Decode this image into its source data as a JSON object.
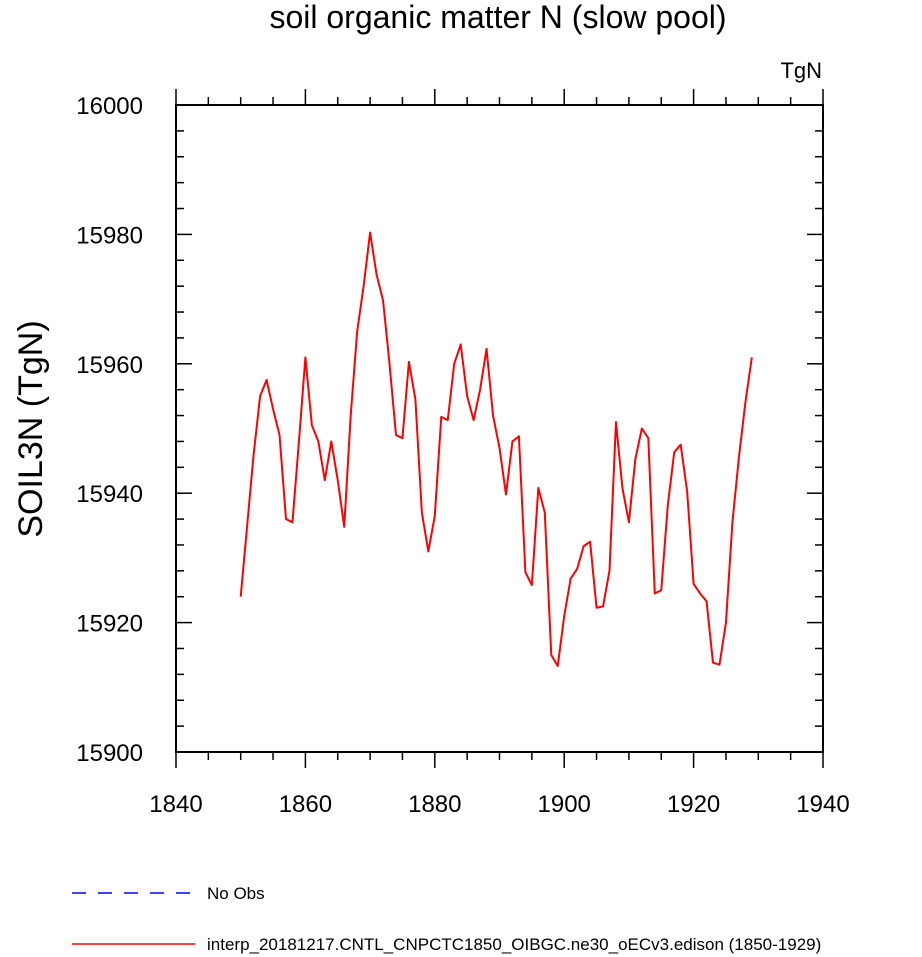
{
  "chart_data": {
    "type": "line",
    "title": "soil organic matter N (slow pool)",
    "units_label": "TgN",
    "ylabel": "SOIL3N  (TgN)",
    "xlabel": "",
    "xlim": [
      1840,
      1940
    ],
    "ylim": [
      15900,
      16000
    ],
    "x_ticks": [
      1840,
      1860,
      1880,
      1900,
      1920,
      1940
    ],
    "y_ticks": [
      15900,
      15920,
      15940,
      15960,
      15980,
      16000
    ],
    "x_tick_labels": [
      "1840",
      "1860",
      "1880",
      "1900",
      "1920",
      "1940"
    ],
    "y_tick_labels": [
      "15900",
      "15920",
      "15940",
      "15960",
      "15980",
      "16000"
    ],
    "grid": false,
    "legend": [
      {
        "label": "No Obs",
        "color": "#0000ff",
        "style": "dashed"
      },
      {
        "label": "interp_20181217.CNTL_CNPCTC1850_OIBGC.ne30_oECv3.edison (1850-1929)",
        "color": "#ff0000",
        "style": "solid"
      }
    ],
    "series": [
      {
        "name": "interp_20181217.CNTL_CNPCTC1850_OIBGC.ne30_oECv3.edison (1850-1929)",
        "color": "#ff0000",
        "x": [
          1850,
          1851,
          1852,
          1853,
          1854,
          1855,
          1856,
          1857,
          1858,
          1859,
          1860,
          1861,
          1862,
          1863,
          1864,
          1865,
          1866,
          1867,
          1868,
          1869,
          1870,
          1871,
          1872,
          1873,
          1874,
          1875,
          1876,
          1877,
          1878,
          1879,
          1880,
          1881,
          1882,
          1883,
          1884,
          1885,
          1886,
          1887,
          1888,
          1889,
          1890,
          1891,
          1892,
          1893,
          1894,
          1895,
          1896,
          1897,
          1898,
          1899,
          1900,
          1901,
          1902,
          1903,
          1904,
          1905,
          1906,
          1907,
          1908,
          1909,
          1910,
          1911,
          1912,
          1913,
          1914,
          1915,
          1916,
          1917,
          1918,
          1919,
          1920,
          1921,
          1922,
          1923,
          1924,
          1925,
          1926,
          1927,
          1928,
          1929
        ],
        "values": [
          15924,
          15935,
          15946,
          15955,
          15957.5,
          15953,
          15949,
          15936,
          15935.5,
          15948,
          15961,
          15950.5,
          15948,
          15942,
          15948,
          15942,
          15934.8,
          15952,
          15965,
          15972,
          15980.3,
          15973.8,
          15969.8,
          15960,
          15949,
          15948.5,
          15960.3,
          15954.5,
          15937,
          15931,
          15936.5,
          15951.8,
          15951.3,
          15960,
          15963,
          15955,
          15951.3,
          15956,
          15962.3,
          15952,
          15947,
          15939.8,
          15948,
          15948.8,
          15927.8,
          15925.8,
          15940.8,
          15937,
          15915,
          15913.3,
          15921,
          15926.8,
          15928.3,
          15931.8,
          15932.5,
          15922.3,
          15922.5,
          15928,
          15951,
          15940.8,
          15935.5,
          15945.3,
          15950,
          15948.5,
          15924.5,
          15925,
          15938,
          15946.3,
          15947.5,
          15940.3,
          15926,
          15924.5,
          15923.3,
          15913.8,
          15913.5,
          15920,
          15935.5,
          15945.5,
          15954,
          15961
        ]
      }
    ]
  }
}
